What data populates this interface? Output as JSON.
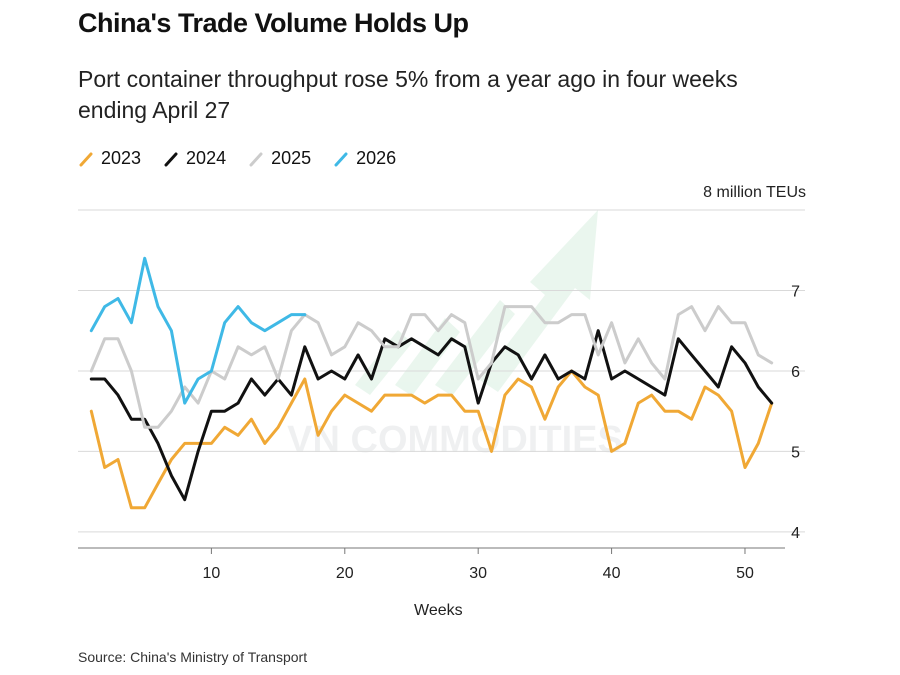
{
  "title": "China's Trade Volume Holds Up",
  "subtitle": "Port container throughput rose 5% from a year ago in four weeks ending April 27",
  "source": "Source: China's Ministry of Transport",
  "watermark": "VN COMMODITIES",
  "chart_data": {
    "type": "line",
    "xlabel": "Weeks",
    "ylabel": "8 million TEUs",
    "xlim": [
      0,
      53
    ],
    "ylim": [
      3.8,
      8.0
    ],
    "x_ticks": [
      10,
      20,
      30,
      40,
      50
    ],
    "y_ticks": [
      4,
      5,
      6,
      7,
      8
    ],
    "y_tick_labels": [
      "4",
      "5",
      "6",
      "7",
      ""
    ],
    "grid": true,
    "legend_position": "top-left",
    "series": [
      {
        "name": "2023",
        "color": "#f0a835",
        "x": [
          1,
          2,
          3,
          4,
          5,
          6,
          7,
          8,
          9,
          10,
          11,
          12,
          13,
          14,
          15,
          16,
          17,
          18,
          19,
          20,
          21,
          22,
          23,
          24,
          25,
          26,
          27,
          28,
          29,
          30,
          31,
          32,
          33,
          34,
          35,
          36,
          37,
          38,
          39,
          40,
          41,
          42,
          43,
          44,
          45,
          46,
          47,
          48,
          49,
          50,
          51,
          52
        ],
        "values": [
          5.5,
          4.8,
          4.9,
          4.3,
          4.3,
          4.6,
          4.9,
          5.1,
          5.1,
          5.1,
          5.3,
          5.2,
          5.4,
          5.1,
          5.3,
          5.6,
          5.9,
          5.2,
          5.5,
          5.7,
          5.6,
          5.5,
          5.7,
          5.7,
          5.7,
          5.6,
          5.7,
          5.7,
          5.5,
          5.5,
          5.0,
          5.7,
          5.9,
          5.8,
          5.4,
          5.8,
          6.0,
          5.8,
          5.7,
          5.0,
          5.1,
          5.6,
          5.7,
          5.5,
          5.5,
          5.4,
          5.8,
          5.7,
          5.5,
          4.8,
          5.1,
          5.6
        ]
      },
      {
        "name": "2024",
        "color": "#111111",
        "x": [
          1,
          2,
          3,
          4,
          5,
          6,
          7,
          8,
          9,
          10,
          11,
          12,
          13,
          14,
          15,
          16,
          17,
          18,
          19,
          20,
          21,
          22,
          23,
          24,
          25,
          26,
          27,
          28,
          29,
          30,
          31,
          32,
          33,
          34,
          35,
          36,
          37,
          38,
          39,
          40,
          41,
          42,
          43,
          44,
          45,
          46,
          47,
          48,
          49,
          50,
          51,
          52
        ],
        "values": [
          5.9,
          5.9,
          5.7,
          5.4,
          5.4,
          5.1,
          4.7,
          4.4,
          5.0,
          5.5,
          5.5,
          5.6,
          5.9,
          5.7,
          5.9,
          5.7,
          6.3,
          5.9,
          6.0,
          5.9,
          6.2,
          5.9,
          6.4,
          6.3,
          6.4,
          6.3,
          6.2,
          6.4,
          6.3,
          5.6,
          6.1,
          6.3,
          6.2,
          5.9,
          6.2,
          5.9,
          6.0,
          5.9,
          6.5,
          5.9,
          6.0,
          5.9,
          5.8,
          5.7,
          6.4,
          6.2,
          6.0,
          5.8,
          6.3,
          6.1,
          5.8,
          5.6
        ]
      },
      {
        "name": "2025",
        "color": "#cccccc",
        "x": [
          1,
          2,
          3,
          4,
          5,
          6,
          7,
          8,
          9,
          10,
          11,
          12,
          13,
          14,
          15,
          16,
          17,
          18,
          19,
          20,
          21,
          22,
          23,
          24,
          25,
          26,
          27,
          28,
          29,
          30,
          31,
          32,
          33,
          34,
          35,
          36,
          37,
          38,
          39,
          40,
          41,
          42,
          43,
          44,
          45,
          46,
          47,
          48,
          49,
          50,
          51,
          52
        ],
        "values": [
          6.0,
          6.4,
          6.4,
          6.0,
          5.3,
          5.3,
          5.5,
          5.8,
          5.6,
          6.0,
          5.9,
          6.3,
          6.2,
          6.3,
          5.9,
          6.5,
          6.7,
          6.6,
          6.2,
          6.3,
          6.6,
          6.5,
          6.3,
          6.3,
          6.7,
          6.7,
          6.5,
          6.7,
          6.6,
          5.9,
          6.1,
          6.8,
          6.8,
          6.8,
          6.6,
          6.6,
          6.7,
          6.7,
          6.2,
          6.6,
          6.1,
          6.4,
          6.1,
          5.9,
          6.7,
          6.8,
          6.5,
          6.8,
          6.6,
          6.6,
          6.2,
          6.1
        ]
      },
      {
        "name": "2026",
        "color": "#3fb9e6",
        "x": [
          1,
          2,
          3,
          4,
          5,
          6,
          7,
          8,
          9,
          10,
          11,
          12,
          13,
          14,
          15,
          16,
          17
        ],
        "values": [
          6.5,
          6.8,
          6.9,
          6.6,
          7.4,
          6.8,
          6.5,
          5.6,
          5.9,
          6.0,
          6.6,
          6.8,
          6.6,
          6.5,
          6.6,
          6.7,
          6.7
        ]
      }
    ]
  }
}
